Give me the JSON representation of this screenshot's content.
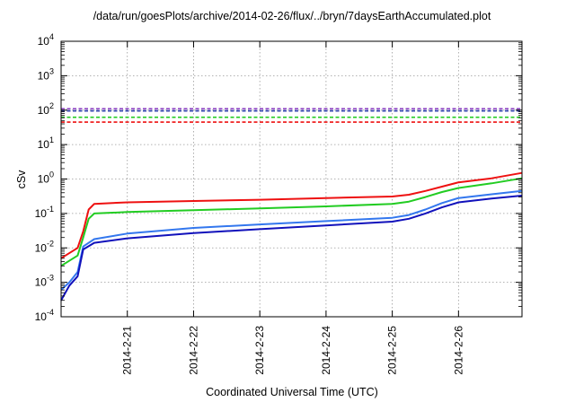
{
  "chart_data": {
    "type": "line",
    "title": "/data/run/goesPlots/archive/2014-02-26/flux/../bryn/7daysEarthAccumulated.plot",
    "xlabel": "Coordinated Universal Time (UTC)",
    "ylabel": "cSv",
    "y_scale": "log",
    "ylim": [
      0.0001,
      10000
    ],
    "y_tick_exponents": [
      "-4",
      "-3",
      "-2",
      "-1",
      "0",
      "1",
      "2",
      "3",
      "4"
    ],
    "y_tick_base": "10",
    "xlim": [
      "2014-02-20 00:00",
      "2014-02-26 23:00"
    ],
    "x_tick_labels": [
      "2014-2-21",
      "2014-2-22",
      "2014-2-23",
      "2014-2-24",
      "2014-2-25",
      "2014-2-26"
    ],
    "x_tick_dates": [
      "2014-02-21",
      "2014-02-22",
      "2014-02-23",
      "2014-02-24",
      "2014-02-25",
      "2014-02-26"
    ],
    "grid": true,
    "legend": "none",
    "threshold_lines": [
      {
        "color": "#8e44c4",
        "value": 110
      },
      {
        "color": "#2233aa",
        "value": 95
      },
      {
        "color": "#22cc22",
        "value": 62
      },
      {
        "color": "#ee1111",
        "value": 45
      }
    ],
    "series": [
      {
        "color": "#ee1111",
        "x": [
          "2014-02-20 00:00",
          "2014-02-20 06:00",
          "2014-02-20 08:00",
          "2014-02-20 10:00",
          "2014-02-20 12:00",
          "2014-02-21 00:00",
          "2014-02-22 00:00",
          "2014-02-23 00:00",
          "2014-02-24 00:00",
          "2014-02-25 00:00",
          "2014-02-25 06:00",
          "2014-02-25 12:00",
          "2014-02-25 18:00",
          "2014-02-26 00:00",
          "2014-02-26 12:00",
          "2014-02-26 23:00"
        ],
        "values": [
          0.005,
          0.01,
          0.03,
          0.13,
          0.19,
          0.21,
          0.23,
          0.25,
          0.28,
          0.31,
          0.35,
          0.45,
          0.6,
          0.8,
          1.05,
          1.5
        ]
      },
      {
        "color": "#22cc22",
        "x": [
          "2014-02-20 00:00",
          "2014-02-20 06:00",
          "2014-02-20 08:00",
          "2014-02-20 10:00",
          "2014-02-20 12:00",
          "2014-02-21 00:00",
          "2014-02-22 00:00",
          "2014-02-23 00:00",
          "2014-02-24 00:00",
          "2014-02-25 00:00",
          "2014-02-25 06:00",
          "2014-02-25 12:00",
          "2014-02-25 18:00",
          "2014-02-26 00:00",
          "2014-02-26 12:00",
          "2014-02-26 23:00"
        ],
        "values": [
          0.003,
          0.006,
          0.02,
          0.07,
          0.1,
          0.11,
          0.125,
          0.14,
          0.16,
          0.19,
          0.22,
          0.3,
          0.42,
          0.55,
          0.75,
          1.05
        ]
      },
      {
        "color": "#3377ee",
        "x": [
          "2014-02-20 00:00",
          "2014-02-20 03:00",
          "2014-02-20 06:00",
          "2014-02-20 08:00",
          "2014-02-20 12:00",
          "2014-02-21 00:00",
          "2014-02-22 00:00",
          "2014-02-23 00:00",
          "2014-02-24 00:00",
          "2014-02-25 00:00",
          "2014-02-25 06:00",
          "2014-02-25 12:00",
          "2014-02-25 18:00",
          "2014-02-26 00:00",
          "2014-02-26 12:00",
          "2014-02-26 23:00"
        ],
        "values": [
          0.0006,
          0.001,
          0.002,
          0.011,
          0.018,
          0.026,
          0.038,
          0.048,
          0.06,
          0.075,
          0.09,
          0.13,
          0.2,
          0.28,
          0.36,
          0.45
        ]
      },
      {
        "color": "#1111bb",
        "x": [
          "2014-02-20 00:00",
          "2014-02-20 03:00",
          "2014-02-20 06:00",
          "2014-02-20 08:00",
          "2014-02-20 12:00",
          "2014-02-21 00:00",
          "2014-02-22 00:00",
          "2014-02-23 00:00",
          "2014-02-24 00:00",
          "2014-02-25 00:00",
          "2014-02-25 06:00",
          "2014-02-25 12:00",
          "2014-02-25 18:00",
          "2014-02-26 00:00",
          "2014-02-26 12:00",
          "2014-02-26 23:00"
        ],
        "values": [
          0.0003,
          0.0008,
          0.0015,
          0.009,
          0.014,
          0.019,
          0.027,
          0.035,
          0.045,
          0.058,
          0.07,
          0.1,
          0.15,
          0.21,
          0.27,
          0.33
        ]
      }
    ]
  }
}
